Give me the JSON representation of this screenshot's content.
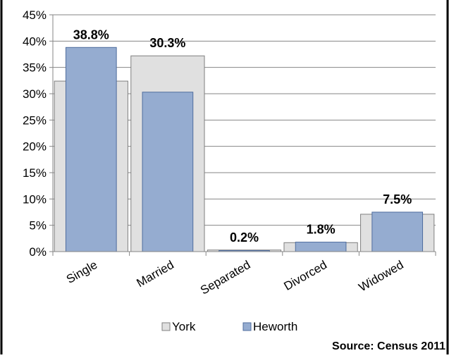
{
  "chart_data": {
    "type": "bar",
    "categories": [
      "Single",
      "Married",
      "Separated",
      "Divorced",
      "Widowed"
    ],
    "series": [
      {
        "name": "York",
        "values": [
          32.4,
          37.2,
          0.3,
          1.7,
          7.1
        ],
        "color": "#e0e0e0"
      },
      {
        "name": "Heworth",
        "values": [
          38.8,
          30.3,
          0.2,
          1.8,
          7.5
        ],
        "color": "#95acd0"
      }
    ],
    "data_labels": [
      "38.8%",
      "30.3%",
      "0.2%",
      "1.8%",
      "7.5%"
    ],
    "y_ticks": [
      "0%",
      "5%",
      "10%",
      "15%",
      "20%",
      "25%",
      "30%",
      "35%",
      "40%",
      "45%"
    ],
    "ylim": [
      0,
      45
    ],
    "grid": true,
    "legend_position": "bottom",
    "source": "Source: Census 2011"
  }
}
